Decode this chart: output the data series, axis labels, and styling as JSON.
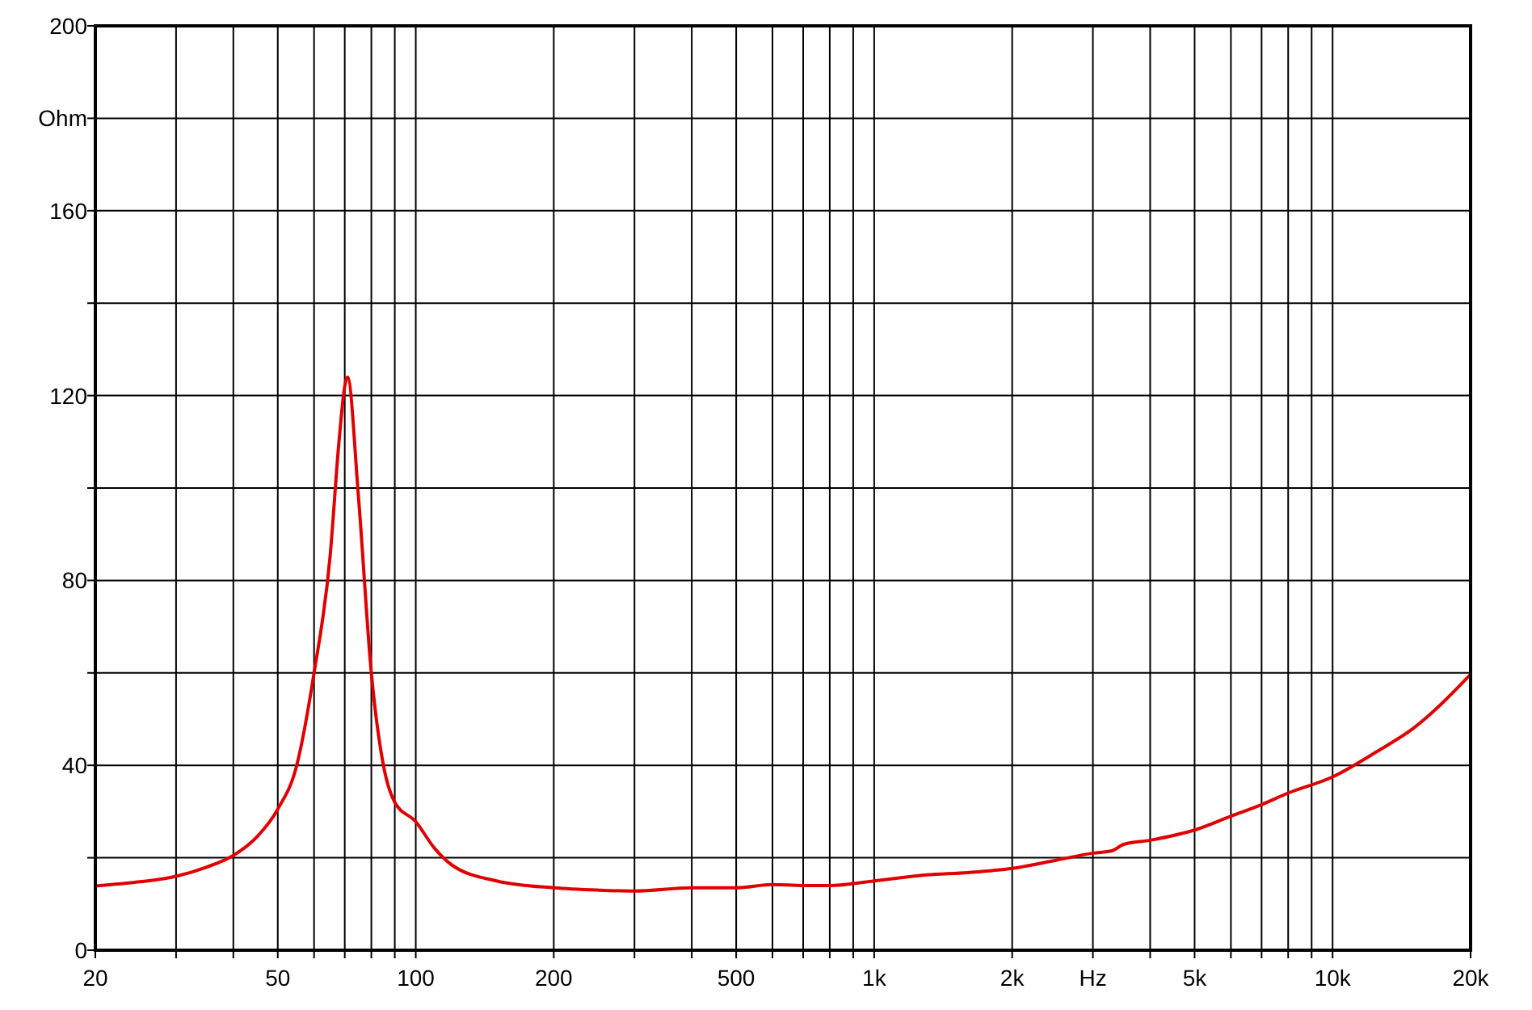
{
  "chart_data": {
    "type": "line",
    "xlabel": "Hz",
    "ylabel": "Ohm",
    "log": "x",
    "grid": true,
    "line_style": "solid",
    "x": [
      20,
      25,
      30,
      35,
      40,
      45,
      50,
      55,
      60,
      65,
      68,
      70,
      71,
      75,
      80,
      85,
      90,
      100,
      110,
      120,
      150,
      200,
      250,
      300,
      400,
      500,
      600,
      700,
      800,
      1000,
      1300,
      1600,
      2000,
      2500,
      3000,
      3300,
      3500,
      4000,
      5000,
      6000,
      7000,
      8000,
      10000,
      12500,
      15000,
      20000
    ],
    "xlim": [
      20,
      20000
    ],
    "ylim": [
      0,
      200
    ],
    "xticks": [
      20,
      {
        "value": 30,
        "label": null
      },
      {
        "value": 40,
        "label": null
      },
      50,
      {
        "value": 60,
        "label": null
      },
      {
        "value": 70,
        "label": null
      },
      {
        "value": 80,
        "label": null
      },
      {
        "value": 90,
        "label": null
      },
      100,
      200,
      {
        "value": 300,
        "label": null
      },
      {
        "value": 400,
        "label": null
      },
      500,
      {
        "value": 600,
        "label": null
      },
      {
        "value": 700,
        "label": null
      },
      {
        "value": 800,
        "label": null
      },
      {
        "value": 900,
        "label": null
      },
      {
        "value": 1000,
        "label": "1k"
      },
      {
        "value": 2000,
        "label": "2k"
      },
      {
        "value": 3000,
        "label": null
      },
      {
        "value": 4000,
        "label": null
      },
      {
        "value": 5000,
        "label": "5k"
      },
      {
        "value": 6000,
        "label": null
      },
      {
        "value": 7000,
        "label": null
      },
      {
        "value": 8000,
        "label": null
      },
      {
        "value": 9000,
        "label": null
      },
      {
        "value": 10000,
        "label": "10k"
      },
      {
        "value": 20000,
        "label": "20k"
      }
    ],
    "yticks": [
      0,
      {
        "value": 20,
        "label": null
      },
      40,
      {
        "value": 60,
        "label": null
      },
      80,
      {
        "value": 100,
        "label": null
      },
      120,
      {
        "value": 140,
        "label": null
      },
      160,
      {
        "value": 180,
        "label": null
      },
      200
    ],
    "series": [
      {
        "color": "#e00000",
        "values": [
          13.9,
          14.8,
          16,
          18,
          20.5,
          24.5,
          30.5,
          40,
          60,
          85,
          110,
          122,
          124,
          98,
          60,
          40,
          32,
          27.8,
          22,
          18.4,
          15,
          13.5,
          13,
          12.8,
          13.5,
          13.5,
          14.2,
          14,
          14,
          15,
          16.3,
          16.8,
          17.7,
          19.5,
          21,
          21.5,
          22.9,
          23.8,
          26,
          29,
          31.5,
          34,
          37.5,
          43,
          48,
          59.7
        ]
      }
    ]
  }
}
